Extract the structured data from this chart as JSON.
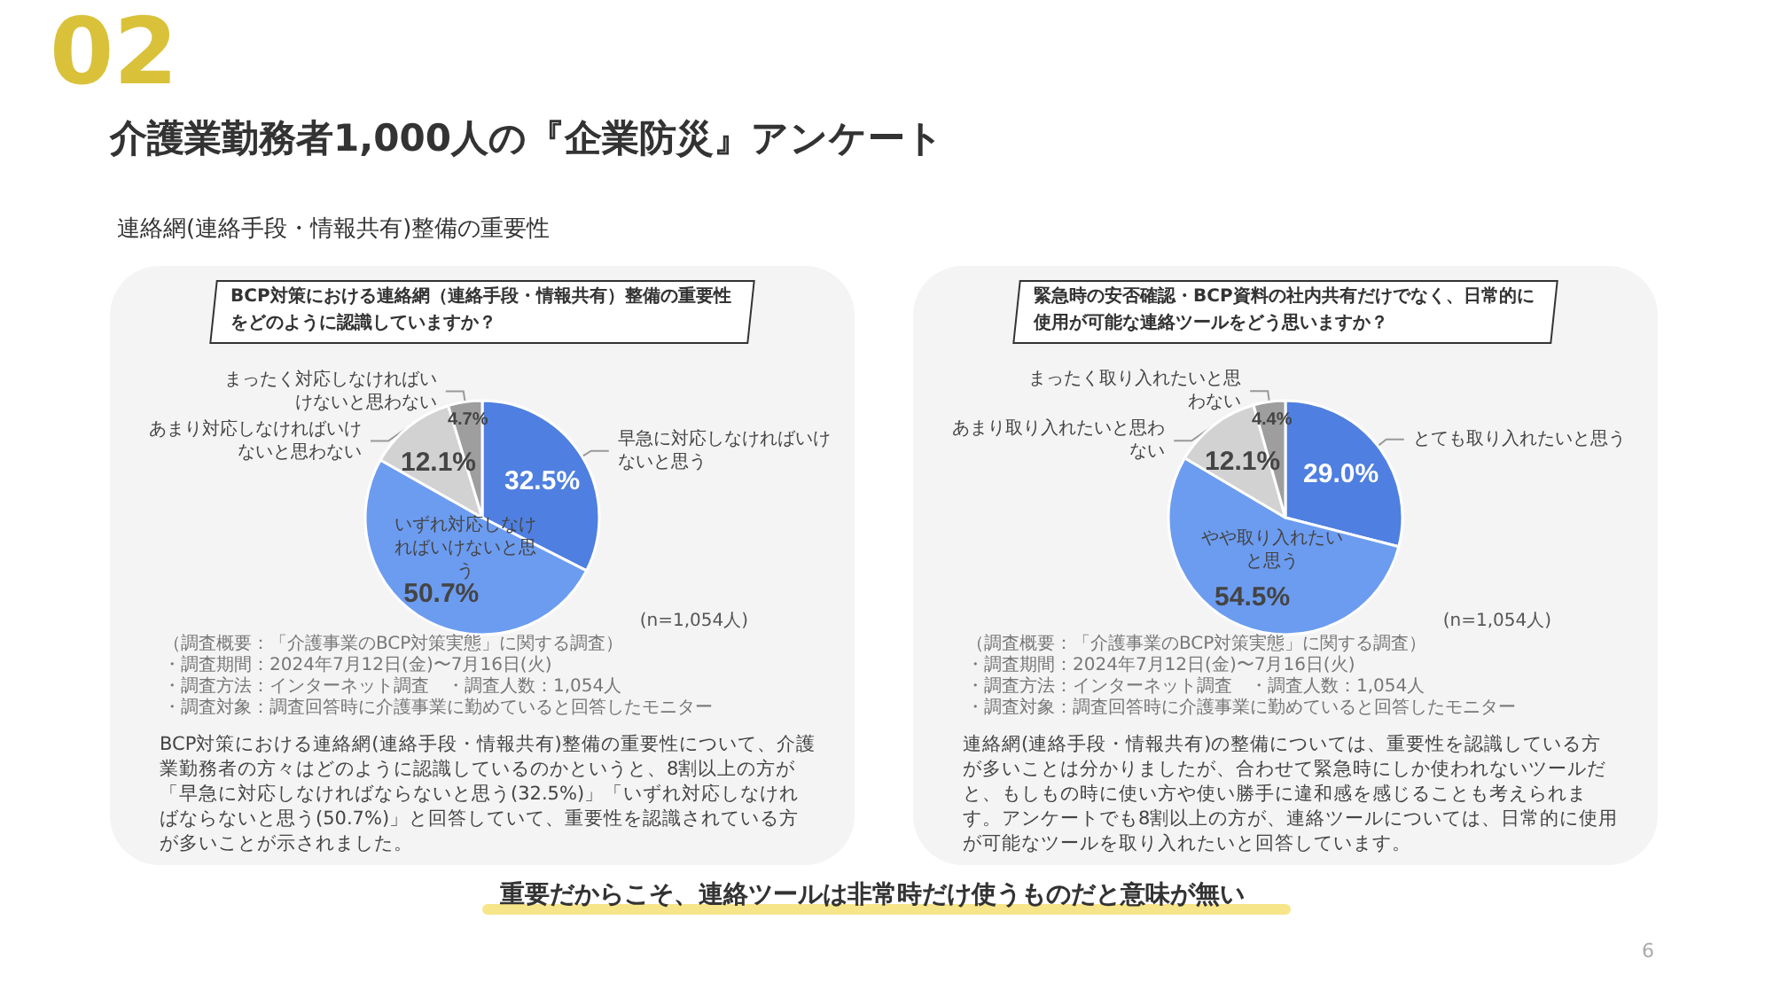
{
  "chart_data": [
    {
      "type": "other",
      "title": "介護業勤務者1,000人の『企業防災』アンケート",
      "subtitle": "連絡網(連絡手段・情報共有)整備の重要性",
      "annotations": [
        "02",
        "重要だからこそ、連絡ツールは非常時だけ使うものだと意味が無い",
        "6"
      ]
    },
    {
      "type": "pie",
      "title": "BCP対策における連絡網（連絡手段・情報共有）整備の重要性をどのように認識していますか？",
      "categories": [
        "早急に対応しなければいけないと思う",
        "いずれ対応しなければいけないと思う",
        "あまり対応しなければいけないと思わない",
        "まったく対応しなければいけないと思わない"
      ],
      "values": [
        32.5,
        50.7,
        12.1,
        4.7
      ],
      "colors": [
        "#4f7fe0",
        "#6c9cf0",
        "#d2d2d2",
        "#9e9e9e"
      ],
      "value_labels": [
        "32.5%",
        "50.7%",
        "12.1%",
        "4.7%"
      ],
      "annotations": [
        "(n=1,054人)",
        "（調査概要：「介護事業のBCP対策実態」に関する調査）",
        "・調査期間：2024年7月12日(金)〜7月16日(火)",
        "・調査方法：インターネット調査",
        "・調査人数：1,054人",
        "・調査対象：調査回答時に介護事業に勤めていると回答したモニター",
        "BCP対策における連絡網(連絡手段・情報共有)整備の重要性について、介護業勤務者の方々はどのように認識しているのかというと、8割以上の方が「早急に対応しなければならないと思う(32.5%)」「いずれ対応しなければならないと思う(50.7%)」と回答していて、重要性を認識されている方が多いことが示されました。"
      ]
    },
    {
      "type": "pie",
      "title": "緊急時の安否確認・BCP資料の社内共有だけでなく、日常的に使用が可能な連絡ツールをどう思いますか？",
      "categories": [
        "とても取り入れたいと思う",
        "やや取り入れたいと思う",
        "あまり取り入れたいと思わない",
        "まったく取り入れたいと思わない"
      ],
      "values": [
        29.0,
        54.5,
        12.1,
        4.4
      ],
      "colors": [
        "#4f7fe0",
        "#6c9cf0",
        "#d2d2d2",
        "#9e9e9e"
      ],
      "value_labels": [
        "29.0%",
        "54.5%",
        "12.1%",
        "4.4%"
      ],
      "annotations": [
        "(n=1,054人)",
        "（調査概要：「介護事業のBCP対策実態」に関する調査）",
        "・調査期間：2024年7月12日(金)〜7月16日(火)",
        "・調査方法：インターネット調査",
        "・調査人数：1,054人",
        "・調査対象：調査回答時に介護事業に勤めていると回答したモニター",
        "連絡網(連絡手段・情報共有)の整備については、重要性を認識している方が多いことは分かりましたが、合わせて緊急時にしか使われないツールだと、もしもの時に使い方や使い勝手に違和感を感じることも考えられます。アンケートでも8割以上の方が、連絡ツールについては、日常的に使用が可能なツールを取り入れたいと回答しています。"
      ]
    }
  ]
}
